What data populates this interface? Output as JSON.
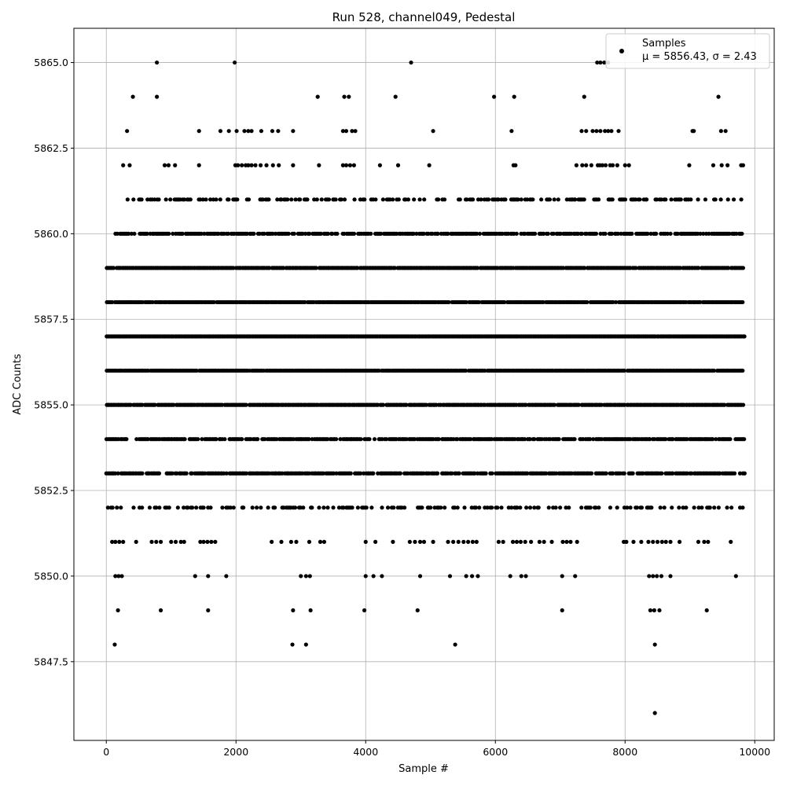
{
  "chart_data": {
    "type": "scatter",
    "title": "Run 528, channel049, Pedestal",
    "xlabel": "Sample #",
    "ylabel": "ADC Counts",
    "xlim": [
      -500,
      10300
    ],
    "ylim": [
      5845.2,
      5866.0
    ],
    "x_ticks": [
      0,
      2000,
      4000,
      6000,
      8000,
      10000
    ],
    "x_tick_labels": [
      "0",
      "2000",
      "4000",
      "6000",
      "8000",
      "10000"
    ],
    "y_ticks": [
      5847.5,
      5850.0,
      5852.5,
      5855.0,
      5857.5,
      5860.0,
      5862.5,
      5865.0
    ],
    "y_tick_labels": [
      "5847.5",
      "5850.0",
      "5852.5",
      "5855.0",
      "5857.5",
      "5860.0",
      "5862.5",
      "5865.0"
    ],
    "grid": true,
    "legend": {
      "placement": "top-right",
      "series_label": "Samples",
      "stats_label": "μ = 5856.43, σ = 2.43"
    },
    "marker_color": "#000000",
    "series": [
      {
        "name": "Samples",
        "description_levels": [
          {
            "y": 5865,
            "x": [
              780,
              1980,
              4700,
              7570,
              7620,
              7680,
              7740
            ]
          },
          {
            "y": 5864,
            "x": [
              410,
              780,
              3260,
              3670,
              3740,
              4460,
              5980,
              6290,
              7370,
              9440
            ]
          },
          {
            "y": 5863,
            "x": [
              320,
              1430,
              1760,
              1890,
              2010,
              2130,
              2190,
              2240,
              2390,
              2560,
              2650,
              2880,
              3650,
              3700,
              3790,
              3840,
              5040,
              6250,
              7330,
              7400,
              7500,
              7560,
              7620,
              7690,
              7740,
              7790,
              7900,
              9040,
              9060,
              9480,
              9550
            ]
          },
          {
            "y": 5862,
            "x": [
              260,
              360,
              900,
              960,
              1060,
              1430,
              1990,
              2030,
              2090,
              2150,
              2190,
              2240,
              2300,
              2380,
              2470,
              2570,
              2660,
              2880,
              3280,
              3650,
              3700,
              3760,
              3820,
              4220,
              4500,
              4980,
              6280,
              6310,
              7250,
              7340,
              7400,
              7480,
              7580,
              7610,
              7650,
              7700,
              7770,
              7810,
              7880,
              8000,
              8060,
              8990,
              9360,
              9490,
              9580,
              9790,
              9820
            ]
          },
          {
            "y": 5861,
            "x": "dense",
            "xmin": 300,
            "xmax": 9830,
            "density": 0.45
          },
          {
            "y": 5860,
            "x": "dense",
            "xmin": 140,
            "xmax": 9830,
            "density": 0.75
          },
          {
            "y": 5859,
            "x": "dense",
            "xmin": 0,
            "xmax": 9830,
            "density": 0.95
          },
          {
            "y": 5858,
            "x": "dense",
            "xmin": 0,
            "xmax": 9830,
            "density": 0.97
          },
          {
            "y": 5857,
            "x": "dense",
            "xmin": 0,
            "xmax": 9840,
            "density": 1.0
          },
          {
            "y": 5856,
            "x": "dense",
            "xmin": 0,
            "xmax": 9830,
            "density": 0.98
          },
          {
            "y": 5855,
            "x": "dense",
            "xmin": 0,
            "xmax": 9830,
            "density": 0.95
          },
          {
            "y": 5854,
            "x": "dense",
            "xmin": 0,
            "xmax": 9840,
            "density": 0.8
          },
          {
            "y": 5853,
            "x": "dense",
            "xmin": 0,
            "xmax": 9840,
            "density": 0.82
          },
          {
            "y": 5852,
            "x": "dense",
            "xmin": 0,
            "xmax": 9830,
            "density": 0.4
          },
          {
            "y": 5851,
            "x": [
              90,
              140,
              200,
              260,
              460,
              700,
              770,
              840,
              1000,
              1070,
              1150,
              1200,
              1450,
              1500,
              1560,
              1620,
              1680,
              2550,
              2700,
              2850,
              2930,
              3130,
              3300,
              3360,
              4000,
              4150,
              4420,
              4680,
              4760,
              4840,
              4900,
              5040,
              5270,
              5350,
              5430,
              5510,
              5580,
              5650,
              5710,
              6050,
              6120,
              6270,
              6330,
              6390,
              6460,
              6550,
              6680,
              6750,
              6870,
              7040,
              7100,
              7160,
              7260,
              7980,
              8020,
              8130,
              8250,
              8360,
              8430,
              8500,
              8570,
              8630,
              8700,
              8840,
              9130,
              9220,
              9280,
              9630
            ]
          },
          {
            "y": 5850,
            "x": [
              140,
              190,
              240,
              1370,
              1570,
              1850,
              3000,
              3080,
              3140,
              4000,
              4120,
              4250,
              4840,
              5300,
              5550,
              5640,
              5730,
              6230,
              6400,
              6470,
              7030,
              7230,
              8370,
              8430,
              8490,
              8560,
              8700,
              9710
            ]
          },
          {
            "y": 5849,
            "x": [
              180,
              840,
              1570,
              2880,
              3150,
              3980,
              4800,
              7030,
              8390,
              8450,
              8530,
              9260
            ]
          },
          {
            "y": 5848,
            "x": [
              130,
              2870,
              3080,
              5380,
              8460
            ]
          },
          {
            "y": 5846,
            "x": [
              8460
            ]
          }
        ]
      }
    ]
  }
}
